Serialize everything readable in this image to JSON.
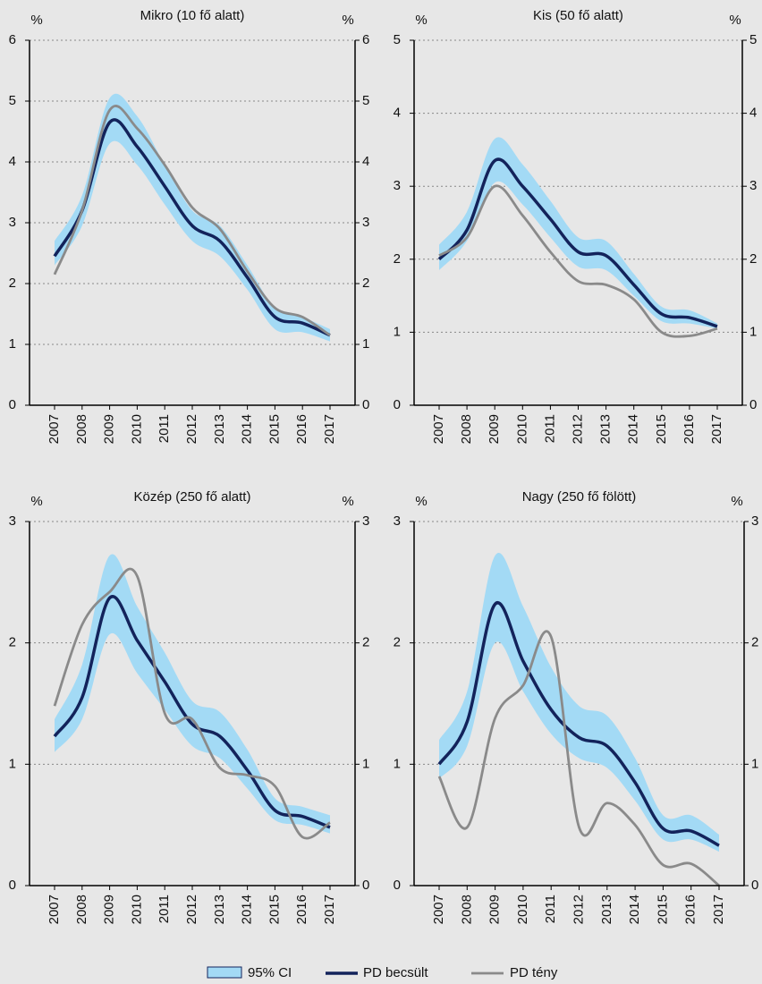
{
  "chart_data": [
    {
      "type": "line",
      "title": "Mikro (10 fő alatt)",
      "ylabel": "%",
      "y2label": "%",
      "categories": [
        "2007",
        "2008",
        "2009",
        "2010",
        "2011",
        "2012",
        "2013",
        "2014",
        "2015",
        "2016",
        "2017"
      ],
      "series": [
        {
          "name": "95% CI",
          "color": "#a3daf5",
          "upper": [
            2.7,
            3.45,
            5.05,
            4.75,
            3.95,
            3.2,
            2.95,
            2.3,
            1.6,
            1.45,
            1.25
          ],
          "lower": [
            2.3,
            2.95,
            4.3,
            3.95,
            3.3,
            2.7,
            2.45,
            1.9,
            1.25,
            1.2,
            1.05
          ]
        },
        {
          "name": "PD becsült",
          "color": "#13235b",
          "values": [
            2.45,
            3.2,
            4.65,
            4.25,
            3.6,
            2.95,
            2.7,
            2.1,
            1.45,
            1.35,
            1.15
          ]
        },
        {
          "name": "PD tény",
          "color": "#8a8a8a",
          "values": [
            2.15,
            3.2,
            4.85,
            4.55,
            3.95,
            3.25,
            2.9,
            2.2,
            1.6,
            1.45,
            1.15
          ]
        }
      ],
      "ylim": [
        0,
        6
      ],
      "yticks": [
        0,
        1,
        2,
        3,
        4,
        5,
        6
      ],
      "y2lim": [
        0,
        6
      ],
      "y2ticks": [
        0,
        1,
        2,
        3,
        4,
        5,
        6
      ],
      "grid": true
    },
    {
      "type": "line",
      "title": "Kis (50 fő alatt)",
      "ylabel": "%",
      "y2label": "%",
      "categories": [
        "2007",
        "2008",
        "2009",
        "2010",
        "2011",
        "2012",
        "2013",
        "2014",
        "2015",
        "2016",
        "2017"
      ],
      "series": [
        {
          "color": "#a3daf5",
          "upper": [
            2.2,
            2.65,
            3.65,
            3.3,
            2.8,
            2.3,
            2.25,
            1.8,
            1.35,
            1.3,
            1.12
          ],
          "lower": [
            1.85,
            2.25,
            3.05,
            2.75,
            2.3,
            1.9,
            1.85,
            1.5,
            1.15,
            1.12,
            1.05
          ]
        },
        {
          "color": "#13235b",
          "values": [
            2.0,
            2.4,
            3.35,
            3.0,
            2.55,
            2.1,
            2.05,
            1.65,
            1.25,
            1.2,
            1.08
          ]
        },
        {
          "color": "#8a8a8a",
          "values": [
            2.05,
            2.3,
            3.0,
            2.6,
            2.1,
            1.7,
            1.65,
            1.45,
            1.0,
            0.95,
            1.05
          ]
        }
      ],
      "ylim": [
        0,
        5
      ],
      "yticks": [
        0,
        1,
        2,
        3,
        4,
        5
      ],
      "y2lim": [
        0,
        5
      ],
      "y2ticks": [
        0,
        1,
        2,
        3,
        4,
        5
      ],
      "grid": true
    },
    {
      "type": "line",
      "title": "Közép (250 fő alatt)",
      "ylabel": "%",
      "y2label": "%",
      "categories": [
        "2007",
        "2008",
        "2009",
        "2010",
        "2011",
        "2012",
        "2013",
        "2014",
        "2015",
        "2016",
        "2017"
      ],
      "series": [
        {
          "color": "#a3daf5",
          "upper": [
            1.37,
            1.82,
            2.72,
            2.3,
            1.92,
            1.52,
            1.43,
            1.12,
            0.72,
            0.65,
            0.58
          ],
          "lower": [
            1.1,
            1.37,
            2.07,
            1.75,
            1.45,
            1.15,
            1.05,
            0.8,
            0.54,
            0.5,
            0.43
          ]
        },
        {
          "color": "#13235b",
          "values": [
            1.23,
            1.55,
            2.37,
            2.02,
            1.68,
            1.33,
            1.23,
            0.95,
            0.62,
            0.57,
            0.48
          ]
        },
        {
          "color": "#8a8a8a",
          "values": [
            1.48,
            2.15,
            2.42,
            2.55,
            1.42,
            1.37,
            0.97,
            0.91,
            0.82,
            0.4,
            0.52
          ]
        }
      ],
      "ylim": [
        0,
        3
      ],
      "yticks": [
        0,
        1,
        2,
        3
      ],
      "y2lim": [
        0,
        3
      ],
      "y2ticks": [
        0,
        1,
        2,
        3
      ],
      "grid": true
    },
    {
      "type": "line",
      "title": "Nagy (250 fő fölött)",
      "ylabel": "%",
      "y2label": "%",
      "categories": [
        "2007",
        "2008",
        "2009",
        "2010",
        "2011",
        "2012",
        "2013",
        "2014",
        "2015",
        "2016",
        "2017"
      ],
      "series": [
        {
          "color": "#a3daf5",
          "upper": [
            1.2,
            1.6,
            2.72,
            2.3,
            1.8,
            1.48,
            1.4,
            1.05,
            0.58,
            0.58,
            0.42
          ],
          "lower": [
            0.88,
            1.15,
            2.0,
            1.6,
            1.25,
            1.05,
            0.97,
            0.7,
            0.38,
            0.38,
            0.28
          ]
        },
        {
          "color": "#13235b",
          "values": [
            1.0,
            1.35,
            2.32,
            1.85,
            1.45,
            1.22,
            1.15,
            0.85,
            0.47,
            0.45,
            0.33
          ]
        },
        {
          "color": "#8a8a8a",
          "values": [
            0.9,
            0.48,
            1.38,
            1.65,
            2.05,
            0.48,
            0.68,
            0.5,
            0.17,
            0.18,
            0.0
          ]
        }
      ],
      "ylim": [
        0,
        3
      ],
      "yticks": [
        0,
        1,
        2,
        3
      ],
      "y2lim": [
        0,
        3
      ],
      "y2ticks": [
        0,
        1,
        2,
        3
      ],
      "grid": true
    }
  ]
}
